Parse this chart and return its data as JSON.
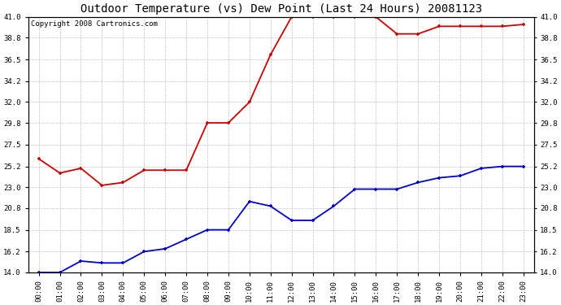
{
  "title": "Outdoor Temperature (vs) Dew Point (Last 24 Hours) 20081123",
  "copyright": "Copyright 2008 Cartronics.com",
  "x_labels": [
    "00:00",
    "01:00",
    "02:00",
    "03:00",
    "04:00",
    "05:00",
    "06:00",
    "07:00",
    "08:00",
    "09:00",
    "10:00",
    "11:00",
    "12:00",
    "13:00",
    "14:00",
    "15:00",
    "16:00",
    "17:00",
    "18:00",
    "19:00",
    "20:00",
    "21:00",
    "22:00",
    "23:00"
  ],
  "temp_data": [
    26.0,
    24.5,
    25.0,
    23.2,
    23.5,
    24.8,
    24.8,
    24.8,
    29.8,
    29.8,
    32.0,
    37.0,
    41.0,
    41.0,
    41.0,
    41.0,
    41.0,
    39.2,
    39.2,
    40.0,
    40.0,
    40.0,
    40.0,
    40.2
  ],
  "dew_data": [
    14.0,
    14.0,
    15.2,
    15.0,
    15.0,
    16.2,
    16.5,
    17.5,
    18.5,
    18.5,
    21.5,
    21.0,
    19.5,
    19.5,
    21.0,
    22.8,
    22.8,
    22.8,
    23.5,
    24.0,
    24.2,
    25.0,
    25.2,
    25.2
  ],
  "temp_color": "#cc0000",
  "dew_color": "#0000cc",
  "ylim_min": 14.0,
  "ylim_max": 41.0,
  "yticks": [
    14.0,
    16.2,
    18.5,
    20.8,
    23.0,
    25.2,
    27.5,
    29.8,
    32.0,
    34.2,
    36.5,
    38.8,
    41.0
  ],
  "ytick_labels": [
    "14.0",
    "16.2",
    "18.5",
    "20.8",
    "23.0",
    "25.2",
    "27.5",
    "29.8",
    "32.0",
    "34.2",
    "36.5",
    "38.8",
    "41.0"
  ],
  "background_color": "#ffffff",
  "grid_color": "#bbbbbb",
  "title_fontsize": 10,
  "copyright_fontsize": 6.5,
  "tick_fontsize": 6.5,
  "line_width": 1.3,
  "marker_size": 3.5
}
